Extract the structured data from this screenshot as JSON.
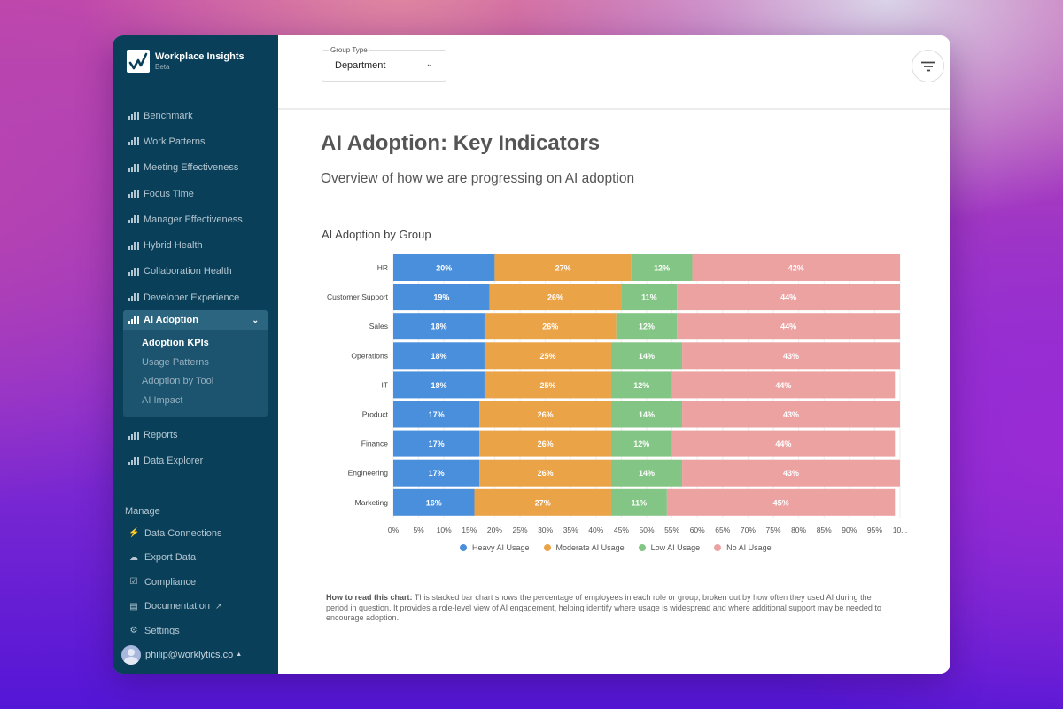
{
  "app": {
    "name": "Workplace Insights",
    "badge": "Beta"
  },
  "sidebar": {
    "items": [
      {
        "label": "Benchmark"
      },
      {
        "label": "Work Patterns"
      },
      {
        "label": "Meeting Effectiveness"
      },
      {
        "label": "Focus Time"
      },
      {
        "label": "Manager Effectiveness"
      },
      {
        "label": "Hybrid Health"
      },
      {
        "label": "Collaboration Health"
      },
      {
        "label": "Developer Experience"
      }
    ],
    "active": {
      "label": "AI Adoption",
      "children": [
        {
          "label": "Adoption KPIs",
          "current": true
        },
        {
          "label": "Usage Patterns"
        },
        {
          "label": "Adoption by Tool"
        },
        {
          "label": "AI Impact"
        }
      ]
    },
    "after_items": [
      {
        "label": "Reports"
      },
      {
        "label": "Data Explorer"
      }
    ],
    "manage_label": "Manage",
    "manage": [
      {
        "label": "Data Connections",
        "icon": "plug-icon"
      },
      {
        "label": "Export Data",
        "icon": "cloud-download-icon"
      },
      {
        "label": "Compliance",
        "icon": "clipboard-check-icon"
      },
      {
        "label": "Documentation",
        "icon": "document-icon",
        "external": true
      },
      {
        "label": "Settings",
        "icon": "gear-icon"
      }
    ],
    "user": {
      "email": "philip@worklytics.co"
    }
  },
  "topbar": {
    "group_type_label": "Group Type",
    "group_type_value": "Department"
  },
  "page": {
    "title": "AI Adoption: Key Indicators",
    "subtitle": "Overview of how we are progressing on AI adoption"
  },
  "note": {
    "lead": "How to read this chart:",
    "text": " This stacked bar chart shows the percentage of employees in each role or group, broken out by how often they used AI during the period in question. It provides a role-level view of AI engagement, helping identify where usage is widespread and where additional support may be needed to encourage adoption."
  },
  "chart_data": {
    "type": "bar",
    "orientation": "horizontal",
    "stacked": true,
    "title": "AI Adoption by Group",
    "xlabel": "",
    "ylabel": "",
    "xlim": [
      0,
      100
    ],
    "x_ticks": [
      "0%",
      "5%",
      "10%",
      "15%",
      "20%",
      "25%",
      "30%",
      "35%",
      "40%",
      "45%",
      "50%",
      "55%",
      "60%",
      "65%",
      "70%",
      "75%",
      "80%",
      "85%",
      "90%",
      "95%",
      "10..."
    ],
    "grid": true,
    "legend_position": "bottom",
    "categories": [
      "HR",
      "Customer Support",
      "Sales",
      "Operations",
      "IT",
      "Product",
      "Finance",
      "Engineering",
      "Marketing"
    ],
    "series": [
      {
        "name": "Heavy AI Usage",
        "color": "#4a8fdc",
        "values": [
          20,
          19,
          18,
          18,
          18,
          17,
          17,
          17,
          16
        ]
      },
      {
        "name": "Moderate AI Usage",
        "color": "#eba348",
        "values": [
          27,
          26,
          26,
          25,
          25,
          26,
          26,
          26,
          27
        ]
      },
      {
        "name": "Low AI Usage",
        "color": "#83c584",
        "values": [
          12,
          11,
          12,
          14,
          12,
          14,
          12,
          14,
          11
        ]
      },
      {
        "name": "No AI Usage",
        "color": "#eda2a2",
        "values": [
          42,
          44,
          44,
          43,
          44,
          43,
          44,
          43,
          45
        ]
      }
    ]
  }
}
